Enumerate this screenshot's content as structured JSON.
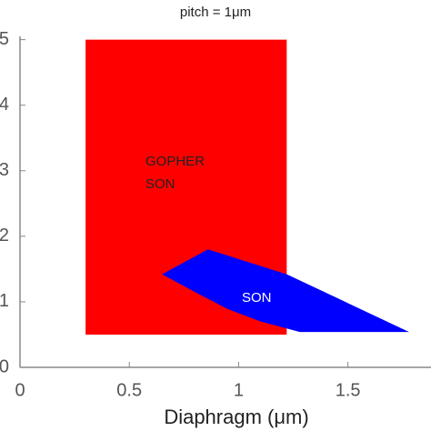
{
  "chart_data": {
    "type": "region",
    "title": "pitch = 1μm",
    "xlabel": "Diaphragm (μm)",
    "xlim": [
      0,
      1.88
    ],
    "ylim": [
      0,
      5.05
    ],
    "xticks": [
      0,
      0.5,
      1,
      1.5
    ],
    "yticks": [
      0,
      1,
      2,
      3,
      4,
      5
    ],
    "series": [
      {
        "name": "GOPHER SON",
        "color": "#ff0000",
        "x": [
          0.3,
          1.22,
          1.22,
          0.3
        ],
        "y": [
          0.5,
          0.5,
          5,
          5
        ]
      },
      {
        "name": "SON",
        "color": "#0000ff",
        "x": [
          0.65,
          0.86,
          1.22,
          1.78,
          1.28,
          1.1,
          0.95,
          0.8
        ],
        "y": [
          1.42,
          1.8,
          1.42,
          0.54,
          0.54,
          0.7,
          0.89,
          1.15
        ]
      }
    ]
  }
}
